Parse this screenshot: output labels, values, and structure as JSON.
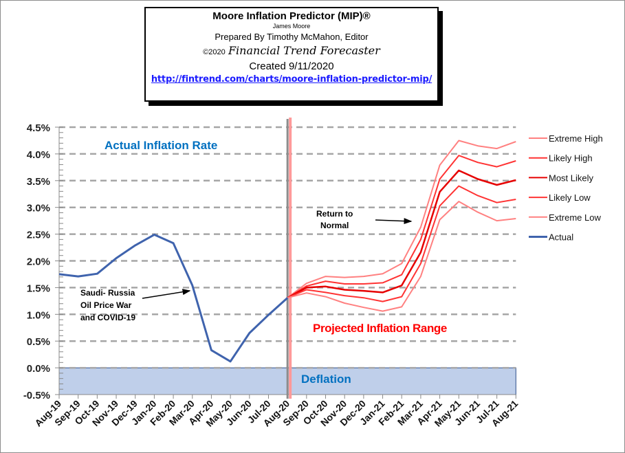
{
  "header": {
    "title": "Moore Inflation Predictor (MIP)®",
    "author": "James Moore",
    "prepared_by": "Prepared  By Timothy McMahon, Editor",
    "copyright_year": "©2020",
    "publisher": "Financial Trend Forecaster",
    "created": "Created  9/11/2020",
    "url": "http://fintrend.com/charts/moore-inflation-predictor-mip/"
  },
  "colors": {
    "actual": "#3f63ad",
    "extreme": "#ff8080",
    "likely": "#ff3333",
    "most_likely": "#e60000",
    "gridline": "#a6a6a6",
    "deflation_fill": "#bfcfea",
    "deflation_border": "#2e4f8a",
    "divider_gray": "#8c8c8c",
    "divider_red": "#ff9999",
    "label_blue": "#0070c0",
    "label_red": "#ff0000"
  },
  "chart_data": {
    "type": "line",
    "title": "Moore Inflation Predictor (MIP)®",
    "xlabel": "",
    "ylabel": "",
    "ylim": [
      -0.5,
      4.5
    ],
    "y_ticks": [
      "4.5%",
      "4.0%",
      "3.5%",
      "3.0%",
      "2.5%",
      "2.0%",
      "1.5%",
      "1.0%",
      "0.5%",
      "0.0%",
      "-0.5%"
    ],
    "y_tick_values": [
      4.5,
      4.0,
      3.5,
      3.0,
      2.5,
      2.0,
      1.5,
      1.0,
      0.5,
      0.0,
      -0.5
    ],
    "grid": true,
    "legend_position": "right",
    "categories": [
      "Aug-19",
      "Sep-19",
      "Oct-19",
      "Nov-19",
      "Dec-19",
      "Jan-20",
      "Feb-20",
      "Mar-20",
      "Apr-20",
      "May-20",
      "Jun-20",
      "Jul-20",
      "Aug-20",
      "Sep-20",
      "Oct-20",
      "Nov-20",
      "Dec-20",
      "Jan-21",
      "Feb-21",
      "Mar-21",
      "Apr-21",
      "May-21",
      "Jun-21",
      "Jul-21",
      "Aug-21"
    ],
    "series": [
      {
        "name": "Extreme High",
        "color_key": "extreme",
        "start_index": 12,
        "values": [
          1.31,
          1.58,
          1.71,
          1.69,
          1.71,
          1.76,
          1.95,
          2.63,
          3.79,
          4.25,
          4.15,
          4.1,
          4.23
        ]
      },
      {
        "name": "Likely High",
        "color_key": "likely",
        "start_index": 12,
        "values": [
          1.31,
          1.53,
          1.62,
          1.57,
          1.57,
          1.59,
          1.74,
          2.4,
          3.53,
          3.97,
          3.84,
          3.76,
          3.87
        ]
      },
      {
        "name": "Most Likely",
        "color_key": "most_likely",
        "start_index": 12,
        "values": [
          1.31,
          1.5,
          1.52,
          1.46,
          1.44,
          1.41,
          1.54,
          2.16,
          3.29,
          3.69,
          3.53,
          3.42,
          3.51
        ]
      },
      {
        "name": "Likely Low",
        "color_key": "likely",
        "start_index": 12,
        "values": [
          1.31,
          1.46,
          1.41,
          1.35,
          1.31,
          1.24,
          1.33,
          1.95,
          3.03,
          3.4,
          3.22,
          3.09,
          3.15
        ]
      },
      {
        "name": "Extreme Low",
        "color_key": "extreme",
        "start_index": 12,
        "values": [
          1.31,
          1.4,
          1.33,
          1.21,
          1.13,
          1.06,
          1.14,
          1.71,
          2.77,
          3.11,
          2.91,
          2.75,
          2.79
        ]
      },
      {
        "name": "Actual",
        "color_key": "actual",
        "start_index": 0,
        "values": [
          1.75,
          1.71,
          1.76,
          2.05,
          2.29,
          2.49,
          2.33,
          1.54,
          0.33,
          0.12,
          0.65,
          0.99,
          1.31
        ]
      }
    ],
    "deflation_band": {
      "from": -0.5,
      "to": 0.0,
      "label": "Deflation"
    },
    "divider_at": "Aug-20",
    "annotations": {
      "actual_label": "Actual Inflation Rate",
      "projected_label": "Projected Inflation Range",
      "saudi_lines": [
        "Saudi- Russia",
        "Oil Price War",
        "and COVID-19"
      ],
      "saudi_arrow_target": "Mar-20",
      "return_lines": [
        "Return to",
        "Normal"
      ]
    }
  }
}
